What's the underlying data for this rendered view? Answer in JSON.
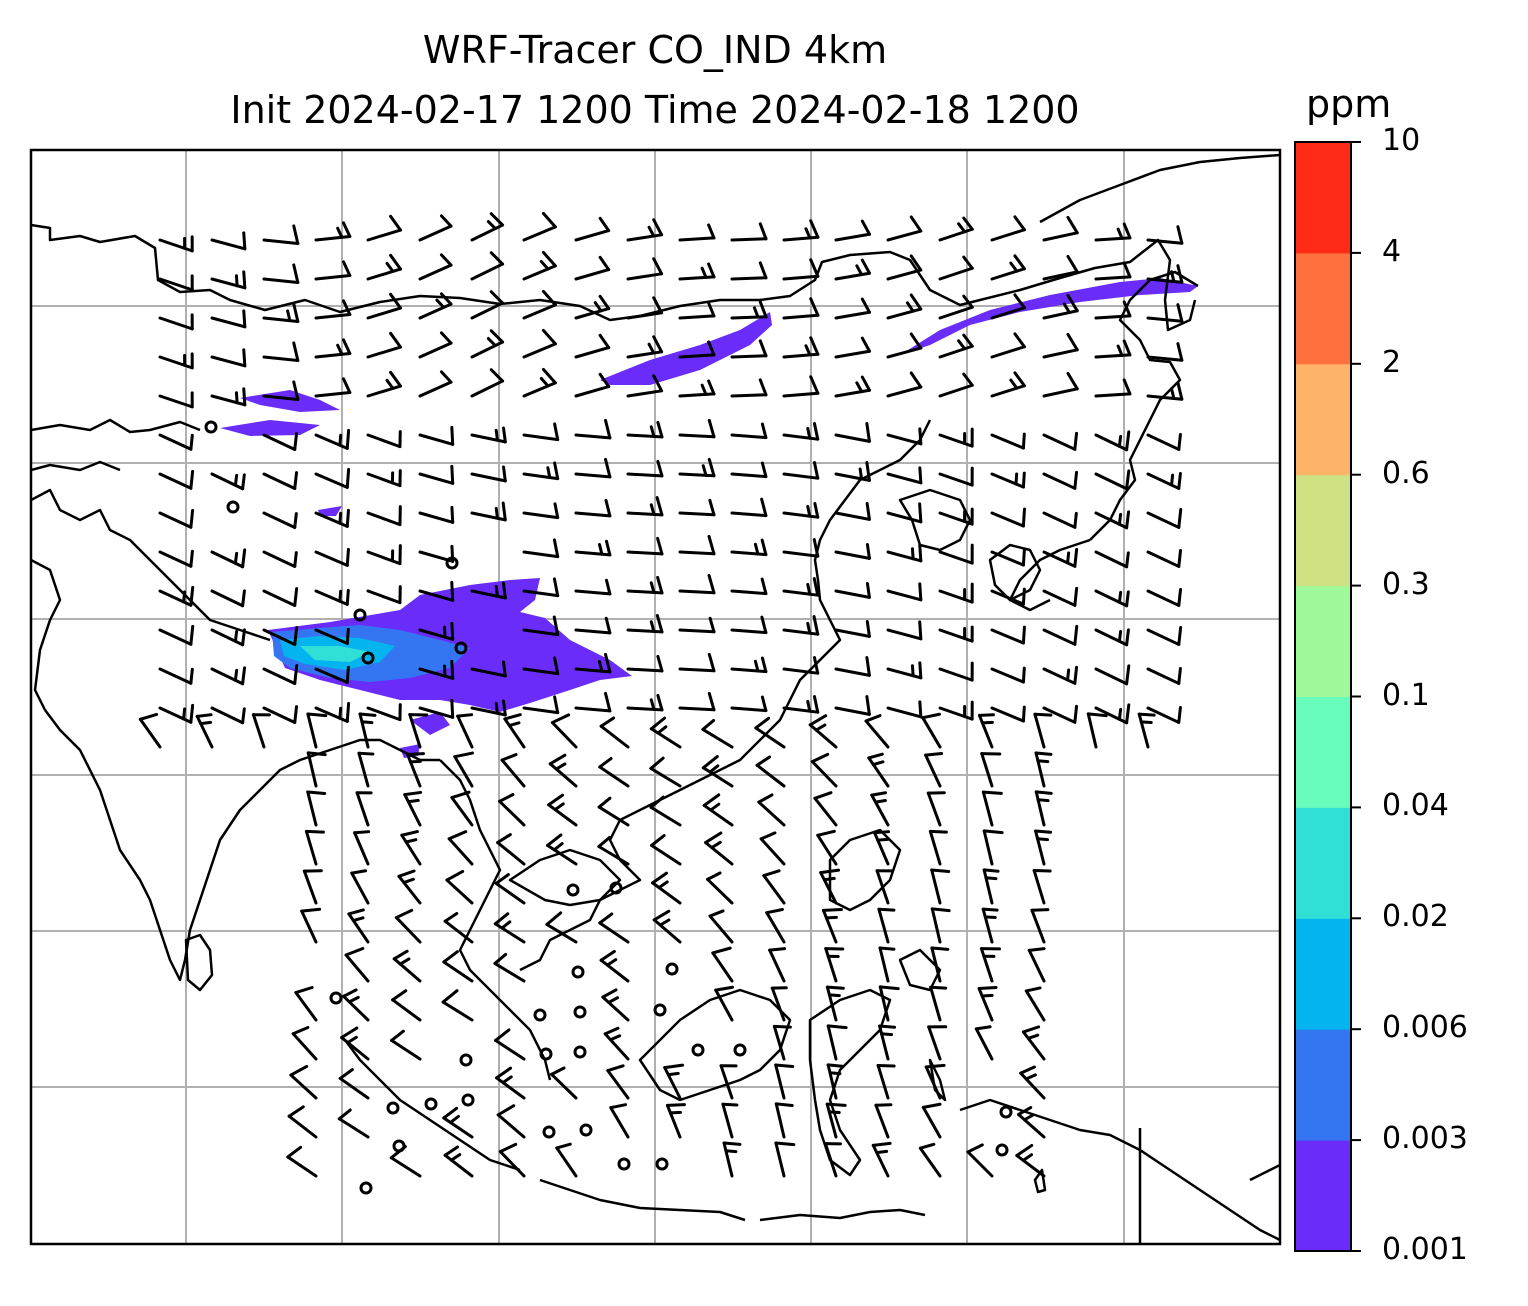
{
  "title": {
    "line1": "WRF-Tracer CO_IND 4km",
    "line2": "Init 2024-02-17 1200 Time 2024-02-18 1200"
  },
  "colorbar": {
    "unit": "ppm",
    "levels": [
      "0.001",
      "0.003",
      "0.006",
      "0.02",
      "0.04",
      "0.1",
      "0.3",
      "0.6",
      "2",
      "4",
      "10"
    ],
    "colors": [
      "#6a2cf8",
      "#3476f2",
      "#04b4ee",
      "#30e0d6",
      "#68fcbc",
      "#9ff99a",
      "#cfe283",
      "#fdb368",
      "#fe703e",
      "#ff2b17"
    ]
  },
  "map": {
    "gridlines": true,
    "coastlines": true,
    "overlay": "wind barbs",
    "plume_colors": {
      "light": "#6a2cf8",
      "mid": "#3476f2",
      "core": "#30e0d6"
    }
  }
}
